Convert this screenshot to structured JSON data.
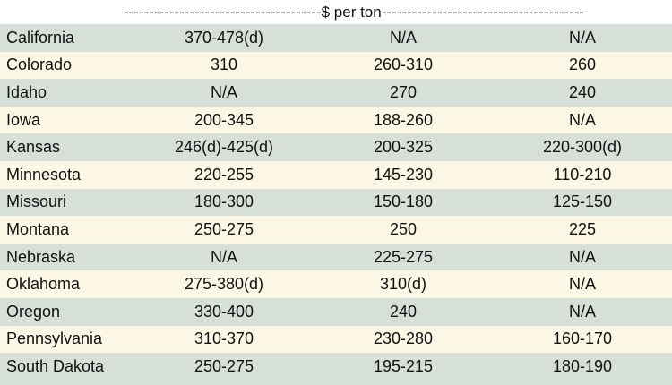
{
  "header": {
    "label": "---------------------------------------$ per ton----------------------------------------"
  },
  "rows": [
    {
      "state": "California",
      "c1": "370-478(d)",
      "c2": "N/A",
      "c3": "N/A"
    },
    {
      "state": "Colorado",
      "c1": "310",
      "c2": "260-310",
      "c3": "260"
    },
    {
      "state": "Idaho",
      "c1": "N/A",
      "c2": "270",
      "c3": "240"
    },
    {
      "state": "Iowa",
      "c1": "200-345",
      "c2": "188-260",
      "c3": "N/A"
    },
    {
      "state": "Kansas",
      "c1": "246(d)-425(d)",
      "c2": "200-325",
      "c3": "220-300(d)"
    },
    {
      "state": "Minnesota",
      "c1": "220-255",
      "c2": "145-230",
      "c3": "110-210"
    },
    {
      "state": "Missouri",
      "c1": "180-300",
      "c2": "150-180",
      "c3": "125-150"
    },
    {
      "state": "Montana",
      "c1": "250-275",
      "c2": "250",
      "c3": "225"
    },
    {
      "state": "Nebraska",
      "c1": "N/A",
      "c2": "225-275",
      "c3": "N/A"
    },
    {
      "state": "Oklahoma",
      "c1": "275-380(d)",
      "c2": "310(d)",
      "c3": "N/A"
    },
    {
      "state": "Oregon",
      "c1": "330-400",
      "c2": "240",
      "c3": "N/A"
    },
    {
      "state": "Pennsylvania",
      "c1": "310-370",
      "c2": "230-280",
      "c3": "160-170"
    },
    {
      "state": "South Dakota",
      "c1": "250-275",
      "c2": "195-215",
      "c3": "180-190"
    }
  ]
}
